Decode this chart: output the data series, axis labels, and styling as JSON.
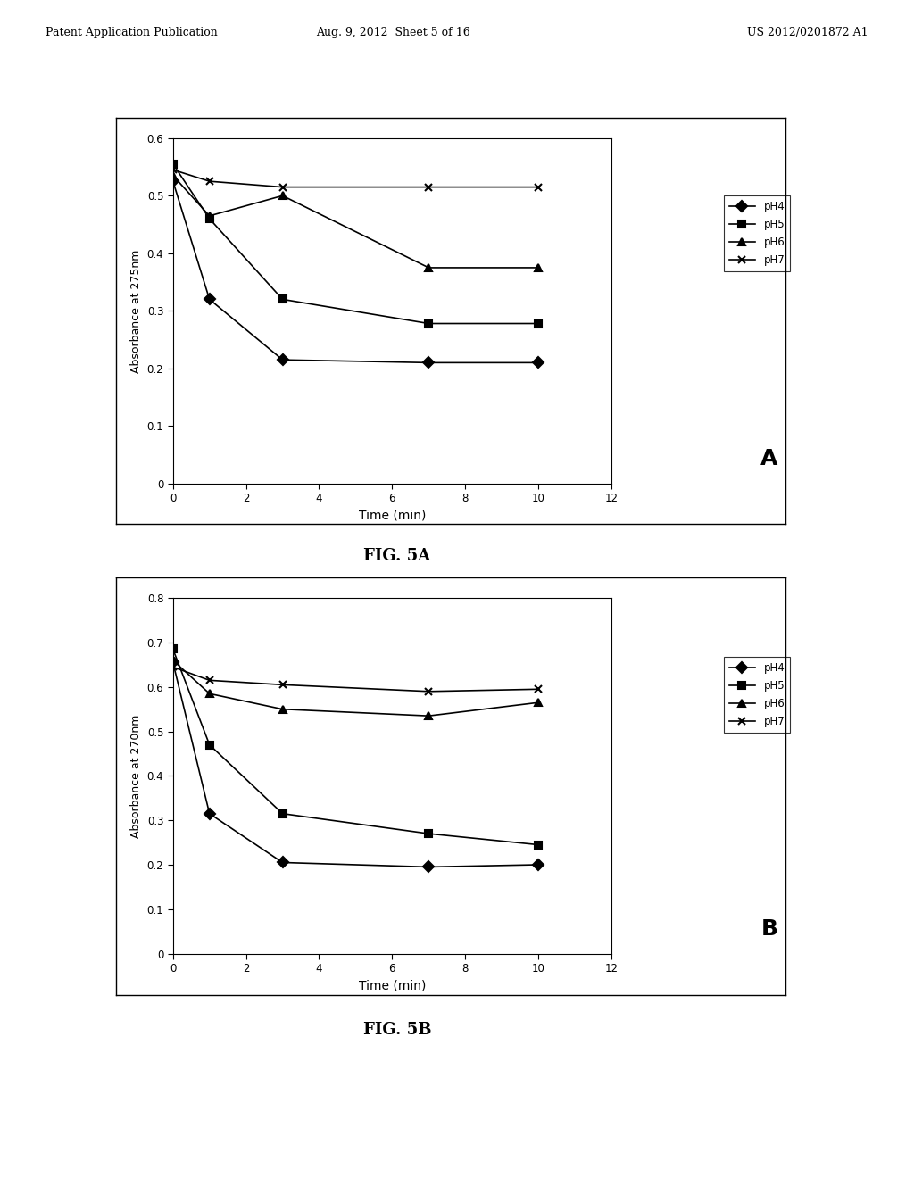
{
  "fig_width": 10.24,
  "fig_height": 13.2,
  "header_left": "Patent Application Publication",
  "header_mid": "Aug. 9, 2012  Sheet 5 of 16",
  "header_right": "US 2012/0201872 A1",
  "figA": {
    "xlabel": "Time (min)",
    "ylabel": "Absorbance at 275nm",
    "xlim": [
      0,
      12
    ],
    "ylim": [
      0,
      0.6
    ],
    "xticks": [
      0,
      2,
      4,
      6,
      8,
      10,
      12
    ],
    "yticks": [
      0,
      0.1,
      0.2,
      0.3,
      0.4,
      0.5,
      0.6
    ],
    "label": "A",
    "caption": "FIG. 5A",
    "series": {
      "pH4": {
        "x": [
          0,
          1,
          3,
          7,
          10
        ],
        "y": [
          0.525,
          0.32,
          0.215,
          0.21,
          0.21
        ],
        "marker": "D",
        "label": "pH4"
      },
      "pH5": {
        "x": [
          0,
          1,
          3,
          7,
          10
        ],
        "y": [
          0.555,
          0.46,
          0.32,
          0.278,
          0.278
        ],
        "marker": "s",
        "label": "pH5"
      },
      "pH6": {
        "x": [
          0,
          1,
          3,
          7,
          10
        ],
        "y": [
          0.535,
          0.465,
          0.5,
          0.375,
          0.375
        ],
        "marker": "^",
        "label": "pH6"
      },
      "pH7": {
        "x": [
          0,
          1,
          3,
          7,
          10
        ],
        "y": [
          0.545,
          0.525,
          0.515,
          0.515,
          0.515
        ],
        "marker": "x",
        "label": "pH7"
      }
    }
  },
  "figB": {
    "xlabel": "Time (min)",
    "ylabel": "Absorbance at 270nm",
    "xlim": [
      0,
      12
    ],
    "ylim": [
      0,
      0.8
    ],
    "xticks": [
      0,
      2,
      4,
      6,
      8,
      10,
      12
    ],
    "yticks": [
      0,
      0.1,
      0.2,
      0.3,
      0.4,
      0.5,
      0.6,
      0.7,
      0.8
    ],
    "label": "B",
    "caption": "FIG. 5B",
    "series": {
      "pH4": {
        "x": [
          0,
          1,
          3,
          7,
          10
        ],
        "y": [
          0.655,
          0.315,
          0.205,
          0.195,
          0.2
        ],
        "marker": "D",
        "label": "pH4"
      },
      "pH5": {
        "x": [
          0,
          1,
          3,
          7,
          10
        ],
        "y": [
          0.685,
          0.47,
          0.315,
          0.27,
          0.245
        ],
        "marker": "s",
        "label": "pH5"
      },
      "pH6": {
        "x": [
          0,
          1,
          3,
          7,
          10
        ],
        "y": [
          0.66,
          0.585,
          0.55,
          0.535,
          0.565
        ],
        "marker": "^",
        "label": "pH6"
      },
      "pH7": {
        "x": [
          0,
          1,
          3,
          7,
          10
        ],
        "y": [
          0.645,
          0.615,
          0.605,
          0.59,
          0.595
        ],
        "marker": "x",
        "label": "pH7"
      }
    }
  }
}
